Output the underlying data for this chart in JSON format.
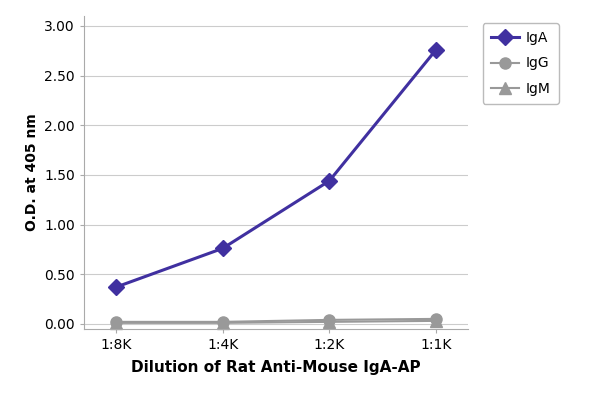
{
  "x_labels": [
    "1:8K",
    "1:4K",
    "1:2K",
    "1:1K"
  ],
  "x_values": [
    0,
    1,
    2,
    3
  ],
  "series": [
    {
      "name": "IgA",
      "values": [
        0.37,
        0.76,
        1.44,
        2.76
      ],
      "color": "#4030a0",
      "marker": "D",
      "markersize": 8,
      "linewidth": 2.2
    },
    {
      "name": "IgG",
      "values": [
        0.02,
        0.02,
        0.04,
        0.05
      ],
      "color": "#999999",
      "marker": "o",
      "markersize": 8,
      "linewidth": 1.5
    },
    {
      "name": "IgM",
      "values": [
        0.01,
        0.01,
        0.02,
        0.03
      ],
      "color": "#999999",
      "marker": "^",
      "markersize": 8,
      "linewidth": 1.5
    }
  ],
  "xlabel": "Dilution of Rat Anti-Mouse IgA-AP",
  "ylabel": "O.D. at 405 nm",
  "ylim": [
    -0.05,
    3.1
  ],
  "yticks": [
    0.0,
    0.5,
    1.0,
    1.5,
    2.0,
    2.5,
    3.0
  ],
  "background_color": "#ffffff",
  "plot_background_color": "#ffffff",
  "grid_color": "#cccccc"
}
